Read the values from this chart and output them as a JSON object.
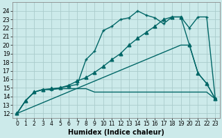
{
  "xlabel": "Humidex (Indice chaleur)",
  "bg_color": "#cceaea",
  "grid_color": "#aacccc",
  "line_color": "#006666",
  "xlim": [
    -0.5,
    23.5
  ],
  "ylim": [
    11.5,
    25.0
  ],
  "xticks": [
    0,
    1,
    2,
    3,
    4,
    5,
    6,
    7,
    8,
    9,
    10,
    11,
    12,
    13,
    14,
    15,
    16,
    17,
    18,
    19,
    20,
    21,
    22,
    23
  ],
  "yticks": [
    12,
    13,
    14,
    15,
    16,
    17,
    18,
    19,
    20,
    21,
    22,
    23,
    24
  ],
  "series": [
    {
      "x": [
        0,
        1,
        2,
        3,
        4,
        5,
        6,
        7,
        8,
        9,
        10,
        11,
        12,
        13,
        14,
        15,
        16,
        17,
        18,
        19,
        20,
        21,
        22,
        23
      ],
      "y": [
        12,
        13.5,
        14.5,
        14.8,
        14.8,
        14.9,
        14.9,
        14.9,
        14.9,
        14.5,
        14.5,
        14.5,
        14.5,
        14.5,
        14.5,
        14.5,
        14.5,
        14.5,
        14.5,
        14.5,
        14.5,
        14.5,
        14.5,
        13.7
      ],
      "marker": null,
      "end_marker": true,
      "linestyle": "-",
      "linewidth": 1.0
    },
    {
      "x": [
        0,
        1,
        2,
        3,
        4,
        5,
        6,
        7,
        8,
        9,
        10,
        11,
        12,
        13,
        14,
        15,
        16,
        17,
        18,
        19,
        20,
        21,
        22,
        23
      ],
      "y": [
        12,
        13.5,
        14.5,
        14.8,
        14.8,
        15.0,
        15.2,
        15.4,
        18.3,
        19.3,
        21.7,
        22.2,
        23.0,
        23.2,
        24.0,
        23.5,
        23.2,
        22.5,
        23.3,
        23.3,
        22.0,
        23.3,
        23.3,
        13.7
      ],
      "marker": "+",
      "end_marker": false,
      "linestyle": "-",
      "linewidth": 1.0
    },
    {
      "x": [
        0,
        1,
        2,
        3,
        4,
        5,
        6,
        7,
        8,
        9,
        10,
        11,
        12,
        13,
        14,
        15,
        16,
        17,
        18,
        19,
        20,
        21,
        22,
        23
      ],
      "y": [
        12,
        13.5,
        14.5,
        14.8,
        14.9,
        15.0,
        15.3,
        15.8,
        16.2,
        16.8,
        17.5,
        18.3,
        19.0,
        20.0,
        20.8,
        21.5,
        22.2,
        23.0,
        23.3,
        23.3,
        20.0,
        16.7,
        15.5,
        13.7
      ],
      "marker": "^",
      "end_marker": false,
      "linestyle": "-",
      "linewidth": 1.0
    },
    {
      "x": [
        0,
        19,
        20,
        21,
        22,
        23
      ],
      "y": [
        12,
        20.0,
        20.0,
        16.7,
        15.5,
        13.7
      ],
      "marker": null,
      "end_marker": false,
      "linestyle": "-",
      "linewidth": 1.0
    }
  ]
}
